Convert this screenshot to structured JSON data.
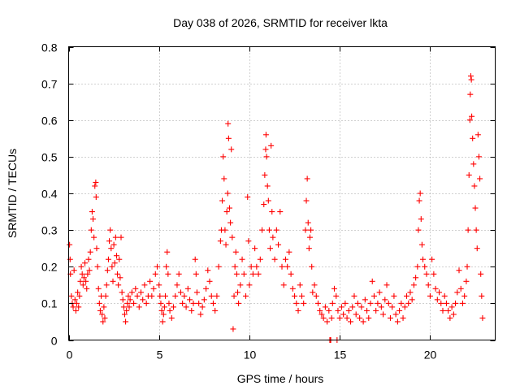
{
  "chart_data": {
    "type": "scatter",
    "title": "Day 038 of 2026, SRMTID for receiver lkta",
    "xlabel": "GPS time / hours",
    "ylabel": "SRMTID / TECUs",
    "xlim": [
      0,
      23.6
    ],
    "ylim": [
      0,
      0.8
    ],
    "xticks": [
      0,
      5,
      10,
      15,
      20
    ],
    "xtick_labels": [
      "0",
      "5",
      "10",
      "15",
      "20"
    ],
    "yticks": [
      0,
      0.1,
      0.2,
      0.3,
      0.4,
      0.5,
      0.6,
      0.7,
      0.8
    ],
    "ytick_labels": [
      "0",
      "0.1",
      "0.2",
      "0.3",
      "0.4",
      "0.5",
      "0.6",
      "0.7",
      "0.8"
    ],
    "grid": true,
    "marker": "plus",
    "series": [
      {
        "name": "SRMTID",
        "color": "#ff0000",
        "points": [
          [
            0.05,
            0.26
          ],
          [
            0.08,
            0.22
          ],
          [
            0.1,
            0.18
          ],
          [
            0.15,
            0.12
          ],
          [
            0.2,
            0.1
          ],
          [
            0.25,
            0.09
          ],
          [
            0.3,
            0.19
          ],
          [
            0.35,
            0.11
          ],
          [
            0.4,
            0.08
          ],
          [
            0.45,
            0.1
          ],
          [
            0.5,
            0.13
          ],
          [
            0.55,
            0.09
          ],
          [
            0.6,
            0.12
          ],
          [
            0.65,
            0.16
          ],
          [
            0.7,
            0.2
          ],
          [
            0.75,
            0.18
          ],
          [
            0.8,
            0.15
          ],
          [
            0.85,
            0.17
          ],
          [
            0.9,
            0.21
          ],
          [
            0.95,
            0.16
          ],
          [
            1.0,
            0.14
          ],
          [
            1.05,
            0.18
          ],
          [
            1.1,
            0.22
          ],
          [
            1.15,
            0.19
          ],
          [
            1.2,
            0.24
          ],
          [
            1.25,
            0.3
          ],
          [
            1.3,
            0.35
          ],
          [
            1.35,
            0.33
          ],
          [
            1.4,
            0.28
          ],
          [
            1.45,
            0.42
          ],
          [
            1.5,
            0.43
          ],
          [
            1.52,
            0.39
          ],
          [
            1.55,
            0.25
          ],
          [
            1.6,
            0.2
          ],
          [
            1.65,
            0.14
          ],
          [
            1.7,
            0.1
          ],
          [
            1.75,
            0.08
          ],
          [
            1.8,
            0.12
          ],
          [
            1.85,
            0.07
          ],
          [
            1.9,
            0.05
          ],
          [
            1.95,
            0.09
          ],
          [
            2.0,
            0.06
          ],
          [
            2.05,
            0.12
          ],
          [
            2.1,
            0.15
          ],
          [
            2.15,
            0.19
          ],
          [
            2.2,
            0.22
          ],
          [
            2.25,
            0.27
          ],
          [
            2.3,
            0.3
          ],
          [
            2.35,
            0.25
          ],
          [
            2.4,
            0.2
          ],
          [
            2.45,
            0.16
          ],
          [
            2.5,
            0.26
          ],
          [
            2.55,
            0.21
          ],
          [
            2.6,
            0.28
          ],
          [
            2.65,
            0.23
          ],
          [
            2.7,
            0.18
          ],
          [
            2.75,
            0.15
          ],
          [
            2.8,
            0.22
          ],
          [
            2.85,
            0.17
          ],
          [
            2.9,
            0.28
          ],
          [
            2.95,
            0.13
          ],
          [
            3.0,
            0.11
          ],
          [
            3.05,
            0.09
          ],
          [
            3.1,
            0.07
          ],
          [
            3.15,
            0.05
          ],
          [
            3.2,
            0.08
          ],
          [
            3.25,
            0.1
          ],
          [
            3.3,
            0.12
          ],
          [
            3.35,
            0.09
          ],
          [
            3.4,
            0.11
          ],
          [
            3.5,
            0.13
          ],
          [
            3.6,
            0.1
          ],
          [
            3.7,
            0.14
          ],
          [
            3.8,
            0.12
          ],
          [
            3.9,
            0.09
          ],
          [
            4.0,
            0.13
          ],
          [
            4.1,
            0.11
          ],
          [
            4.2,
            0.15
          ],
          [
            4.3,
            0.1
          ],
          [
            4.4,
            0.12
          ],
          [
            4.5,
            0.16
          ],
          [
            4.6,
            0.12
          ],
          [
            4.7,
            0.14
          ],
          [
            4.8,
            0.18
          ],
          [
            4.9,
            0.2
          ],
          [
            5.0,
            0.15
          ],
          [
            5.05,
            0.12
          ],
          [
            5.1,
            0.1
          ],
          [
            5.15,
            0.08
          ],
          [
            5.2,
            0.05
          ],
          [
            5.25,
            0.07
          ],
          [
            5.3,
            0.09
          ],
          [
            5.35,
            0.12
          ],
          [
            5.4,
            0.2
          ],
          [
            5.45,
            0.24
          ],
          [
            5.5,
            0.18
          ],
          [
            5.55,
            0.1
          ],
          [
            5.6,
            0.08
          ],
          [
            5.7,
            0.06
          ],
          [
            5.8,
            0.09
          ],
          [
            5.9,
            0.12
          ],
          [
            6.0,
            0.15
          ],
          [
            6.1,
            0.18
          ],
          [
            6.2,
            0.13
          ],
          [
            6.3,
            0.1
          ],
          [
            6.4,
            0.12
          ],
          [
            6.5,
            0.09
          ],
          [
            6.6,
            0.14
          ],
          [
            6.7,
            0.11
          ],
          [
            6.8,
            0.08
          ],
          [
            6.9,
            0.1
          ],
          [
            7.0,
            0.22
          ],
          [
            7.05,
            0.18
          ],
          [
            7.1,
            0.13
          ],
          [
            7.2,
            0.1
          ],
          [
            7.3,
            0.07
          ],
          [
            7.4,
            0.09
          ],
          [
            7.5,
            0.11
          ],
          [
            7.6,
            0.14
          ],
          [
            7.7,
            0.19
          ],
          [
            7.8,
            0.16
          ],
          [
            7.9,
            0.12
          ],
          [
            8.0,
            0.1
          ],
          [
            8.1,
            0.08
          ],
          [
            8.2,
            0.12
          ],
          [
            8.3,
            0.2
          ],
          [
            8.4,
            0.27
          ],
          [
            8.45,
            0.3
          ],
          [
            8.5,
            0.38
          ],
          [
            8.55,
            0.5
          ],
          [
            8.6,
            0.44
          ],
          [
            8.65,
            0.3
          ],
          [
            8.7,
            0.26
          ],
          [
            8.75,
            0.35
          ],
          [
            8.8,
            0.4
          ],
          [
            8.82,
            0.59
          ],
          [
            8.85,
            0.55
          ],
          [
            8.9,
            0.36
          ],
          [
            8.95,
            0.32
          ],
          [
            9.0,
            0.52
          ],
          [
            9.05,
            0.28
          ],
          [
            9.1,
            0.03
          ],
          [
            9.15,
            0.12
          ],
          [
            9.2,
            0.2
          ],
          [
            9.25,
            0.24
          ],
          [
            9.3,
            0.18
          ],
          [
            9.35,
            0.13
          ],
          [
            9.4,
            0.1
          ],
          [
            9.5,
            0.15
          ],
          [
            9.6,
            0.22
          ],
          [
            9.7,
            0.18
          ],
          [
            9.8,
            0.12
          ],
          [
            9.9,
            0.39
          ],
          [
            9.95,
            0.27
          ],
          [
            10.0,
            0.15
          ],
          [
            10.1,
            0.2
          ],
          [
            10.2,
            0.18
          ],
          [
            10.3,
            0.25
          ],
          [
            10.4,
            0.2
          ],
          [
            10.5,
            0.18
          ],
          [
            10.6,
            0.22
          ],
          [
            10.7,
            0.3
          ],
          [
            10.8,
            0.37
          ],
          [
            10.85,
            0.45
          ],
          [
            10.9,
            0.52
          ],
          [
            10.92,
            0.56
          ],
          [
            10.95,
            0.5
          ],
          [
            11.0,
            0.42
          ],
          [
            11.05,
            0.38
          ],
          [
            11.1,
            0.3
          ],
          [
            11.15,
            0.25
          ],
          [
            11.2,
            0.53
          ],
          [
            11.25,
            0.35
          ],
          [
            11.3,
            0.28
          ],
          [
            11.4,
            0.22
          ],
          [
            11.5,
            0.3
          ],
          [
            11.6,
            0.26
          ],
          [
            11.7,
            0.35
          ],
          [
            11.8,
            0.2
          ],
          [
            11.9,
            0.15
          ],
          [
            12.0,
            0.22
          ],
          [
            12.1,
            0.2
          ],
          [
            12.2,
            0.24
          ],
          [
            12.3,
            0.18
          ],
          [
            12.4,
            0.14
          ],
          [
            12.5,
            0.12
          ],
          [
            12.6,
            0.1
          ],
          [
            12.7,
            0.08
          ],
          [
            12.8,
            0.15
          ],
          [
            12.9,
            0.12
          ],
          [
            13.0,
            0.1
          ],
          [
            13.1,
            0.3
          ],
          [
            13.15,
            0.38
          ],
          [
            13.2,
            0.44
          ],
          [
            13.25,
            0.32
          ],
          [
            13.3,
            0.25
          ],
          [
            13.35,
            0.28
          ],
          [
            13.4,
            0.3
          ],
          [
            13.45,
            0.2
          ],
          [
            13.5,
            0.13
          ],
          [
            13.6,
            0.15
          ],
          [
            13.7,
            0.12
          ],
          [
            13.8,
            0.1
          ],
          [
            13.9,
            0.08
          ],
          [
            14.0,
            0.07
          ],
          [
            14.1,
            0.06
          ],
          [
            14.2,
            0.09
          ],
          [
            14.3,
            0.05
          ],
          [
            14.4,
            0.08
          ],
          [
            14.45,
            0.0
          ],
          [
            14.5,
            0.0
          ],
          [
            14.55,
            0.06
          ],
          [
            14.6,
            0.1
          ],
          [
            14.7,
            0.14
          ],
          [
            14.8,
            0.12
          ],
          [
            14.85,
            0.0
          ],
          [
            14.9,
            0.08
          ],
          [
            15.0,
            0.06
          ],
          [
            15.1,
            0.09
          ],
          [
            15.2,
            0.07
          ],
          [
            15.3,
            0.1
          ],
          [
            15.4,
            0.06
          ],
          [
            15.5,
            0.08
          ],
          [
            15.6,
            0.05
          ],
          [
            15.7,
            0.09
          ],
          [
            15.8,
            0.12
          ],
          [
            15.9,
            0.07
          ],
          [
            16.0,
            0.1
          ],
          [
            16.1,
            0.06
          ],
          [
            16.2,
            0.09
          ],
          [
            16.3,
            0.05
          ],
          [
            16.4,
            0.11
          ],
          [
            16.5,
            0.08
          ],
          [
            16.6,
            0.06
          ],
          [
            16.7,
            0.1
          ],
          [
            16.8,
            0.16
          ],
          [
            16.9,
            0.12
          ],
          [
            17.0,
            0.08
          ],
          [
            17.1,
            0.1
          ],
          [
            17.2,
            0.13
          ],
          [
            17.3,
            0.09
          ],
          [
            17.4,
            0.07
          ],
          [
            17.5,
            0.11
          ],
          [
            17.6,
            0.15
          ],
          [
            17.7,
            0.1
          ],
          [
            17.8,
            0.06
          ],
          [
            17.9,
            0.09
          ],
          [
            18.0,
            0.12
          ],
          [
            18.1,
            0.07
          ],
          [
            18.2,
            0.05
          ],
          [
            18.3,
            0.08
          ],
          [
            18.4,
            0.1
          ],
          [
            18.5,
            0.06
          ],
          [
            18.6,
            0.09
          ],
          [
            18.7,
            0.12
          ],
          [
            18.8,
            0.1
          ],
          [
            18.9,
            0.13
          ],
          [
            19.0,
            0.11
          ],
          [
            19.1,
            0.15
          ],
          [
            19.2,
            0.17
          ],
          [
            19.3,
            0.2
          ],
          [
            19.35,
            0.3
          ],
          [
            19.4,
            0.38
          ],
          [
            19.45,
            0.4
          ],
          [
            19.5,
            0.33
          ],
          [
            19.55,
            0.26
          ],
          [
            19.6,
            0.22
          ],
          [
            19.7,
            0.2
          ],
          [
            19.8,
            0.18
          ],
          [
            19.9,
            0.15
          ],
          [
            20.0,
            0.12
          ],
          [
            20.1,
            0.22
          ],
          [
            20.2,
            0.18
          ],
          [
            20.3,
            0.14
          ],
          [
            20.4,
            0.11
          ],
          [
            20.5,
            0.13
          ],
          [
            20.6,
            0.1
          ],
          [
            20.7,
            0.08
          ],
          [
            20.8,
            0.12
          ],
          [
            20.9,
            0.1
          ],
          [
            21.0,
            0.08
          ],
          [
            21.1,
            0.06
          ],
          [
            21.2,
            0.09
          ],
          [
            21.3,
            0.07
          ],
          [
            21.4,
            0.1
          ],
          [
            21.5,
            0.13
          ],
          [
            21.6,
            0.19
          ],
          [
            21.7,
            0.14
          ],
          [
            21.8,
            0.1
          ],
          [
            21.9,
            0.12
          ],
          [
            22.0,
            0.16
          ],
          [
            22.05,
            0.2
          ],
          [
            22.1,
            0.3
          ],
          [
            22.15,
            0.45
          ],
          [
            22.2,
            0.6
          ],
          [
            22.22,
            0.67
          ],
          [
            22.25,
            0.72
          ],
          [
            22.28,
            0.71
          ],
          [
            22.3,
            0.61
          ],
          [
            22.35,
            0.55
          ],
          [
            22.4,
            0.48
          ],
          [
            22.45,
            0.42
          ],
          [
            22.5,
            0.36
          ],
          [
            22.55,
            0.3
          ],
          [
            22.6,
            0.25
          ],
          [
            22.65,
            0.56
          ],
          [
            22.7,
            0.5
          ],
          [
            22.75,
            0.44
          ],
          [
            22.8,
            0.18
          ],
          [
            22.85,
            0.12
          ],
          [
            22.9,
            0.06
          ]
        ]
      }
    ]
  }
}
